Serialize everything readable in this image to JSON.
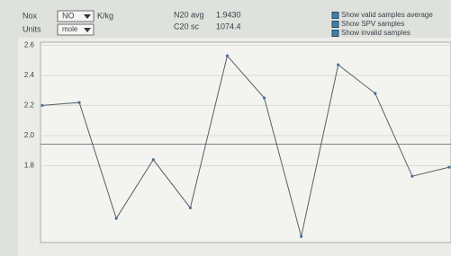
{
  "controls": {
    "nox_label": "Nox",
    "nox_value": "NO",
    "nox_unit": "K/kg",
    "units_label": "Units",
    "units_value": "mole",
    "avg_label": "N20 avg",
    "avg_value": {
      "value": 1.943,
      "label": "1.9430"
    },
    "sc_label": "C20 sc",
    "sc_value": "1074.4",
    "checkboxes": [
      "Show valid samples average",
      "Show SPV samples",
      "Show invalid samples"
    ]
  },
  "chart_data": {
    "type": "line",
    "categories": [
      null,
      null,
      null,
      null,
      null,
      null,
      null,
      null,
      null,
      null,
      null,
      null
    ],
    "values": [
      2.2,
      2.22,
      1.45,
      1.84,
      1.52,
      2.53,
      2.25,
      1.33,
      2.47,
      2.28,
      1.73,
      1.79
    ],
    "color": "#5a5e66",
    "ylim": [
      1.29,
      2.62
    ],
    "yticks": [
      1.8,
      {
        "value": 2.0,
        "label": "2.0"
      },
      2.2,
      2.4,
      2.6
    ],
    "grid": true
  }
}
